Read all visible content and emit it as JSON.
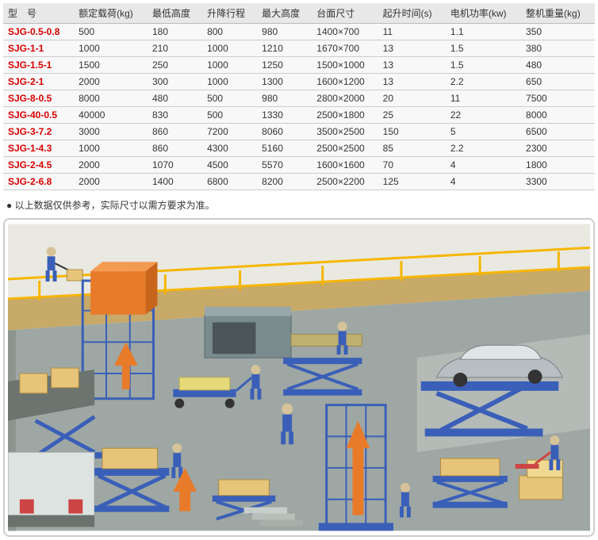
{
  "table": {
    "columns": [
      "型　号",
      "额定载荷(kg)",
      "最低高度",
      "升降行程",
      "最大高度",
      "台面尺寸",
      "起升时间(s)",
      "电机功率(kw)",
      "整机重量(kg)"
    ],
    "rows": [
      [
        "SJG-0.5-0.8",
        "500",
        "180",
        "800",
        "980",
        "1400×700",
        "11",
        "1.1",
        "350"
      ],
      [
        "SJG-1-1",
        "1000",
        "210",
        "1000",
        "1210",
        "1670×700",
        "13",
        "1.5",
        "380"
      ],
      [
        "SJG-1.5-1",
        "1500",
        "250",
        "1000",
        "1250",
        "1500×1000",
        "13",
        "1.5",
        "480"
      ],
      [
        "SJG-2-1",
        "2000",
        "300",
        "1000",
        "1300",
        "1600×1200",
        "13",
        "2.2",
        "650"
      ],
      [
        "SJG-8-0.5",
        "8000",
        "480",
        "500",
        "980",
        "2800×2000",
        "20",
        "11",
        "7500"
      ],
      [
        "SJG-40-0.5",
        "40000",
        "830",
        "500",
        "1330",
        "2500×1800",
        "25",
        "22",
        "8000"
      ],
      [
        "SJG-3-7.2",
        "3000",
        "860",
        "7200",
        "8060",
        "3500×2500",
        "150",
        "5",
        "6500"
      ],
      [
        "SJG-1-4.3",
        "1000",
        "860",
        "4300",
        "5160",
        "2500×2500",
        "85",
        "2.2",
        "2300"
      ],
      [
        "SJG-2-4.5",
        "2000",
        "1070",
        "4500",
        "5570",
        "1600×1600",
        "70",
        "4",
        "1800"
      ],
      [
        "SJG-2-6.8",
        "2000",
        "1400",
        "6800",
        "8200",
        "2500×2200",
        "125",
        "4",
        "3300"
      ]
    ],
    "header_bg": "#e8e8e8",
    "row_bg": "#f8f8f8",
    "border_color": "#cccccc",
    "model_color": "#d80000"
  },
  "note": "● 以上数据仅供参考，实际尺寸以需方要求为准。",
  "illustration": {
    "type": "infographic",
    "background_floor": "#9ea7a3",
    "background_wall": "#e9e9e1",
    "railing_color": "#f7b500",
    "scissor_color": "#3a5fb8",
    "platform_color": "#3a5fb8",
    "box_color": "#e6c57a",
    "box_dark": "#d4a94f",
    "orange_box": "#e87b2a",
    "arrow_color": "#e87b2a",
    "worker_body": "#3a5fb8",
    "worker_head": "#d7c39a",
    "car_color": "#b8bec1",
    "truck_color": "#dce3e0",
    "cart_color": "#3a5fb8",
    "machine_color": "#7a8b8e",
    "cage_color": "#3a5fb8"
  }
}
